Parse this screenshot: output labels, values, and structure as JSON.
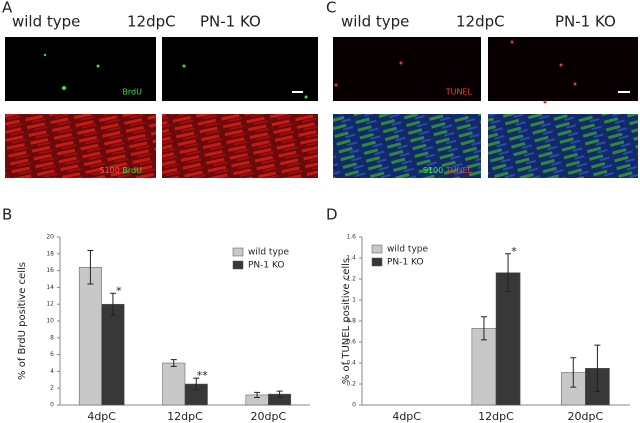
{
  "panels": {
    "a": "A",
    "b": "B",
    "c": "C",
    "d": "D"
  },
  "headers": {
    "left": {
      "wt": "wild type",
      "time": "12dpC",
      "ko": "PN-1 KO"
    },
    "right": {
      "wt": "wild type",
      "time": "12dpC",
      "ko": "PN-1 KO"
    }
  },
  "images": {
    "brdu": "BrdU",
    "s100_brdu": [
      "S100",
      "BrdU"
    ],
    "tunel": "TUNEL",
    "s100_tunel": [
      "S100",
      "TUNEL"
    ]
  },
  "chart_data": [
    {
      "type": "bar",
      "y_label": "% of BrdU positive cells",
      "categories": [
        "4dpC",
        "12dpC",
        "20dpC"
      ],
      "series": [
        {
          "name": "wild type",
          "color": "#c8c8c8",
          "values": [
            16.4,
            5.0,
            1.2
          ],
          "errors": [
            2.0,
            0.4,
            0.3
          ]
        },
        {
          "name": "PN-1 KO",
          "color": "#383838",
          "values": [
            12.0,
            2.5,
            1.3
          ],
          "errors": [
            1.3,
            0.7,
            0.35
          ]
        }
      ],
      "annotations": [
        "*",
        "**"
      ],
      "ylim": [
        0,
        20
      ],
      "yticks": [
        0,
        2,
        4,
        6,
        8,
        10,
        12,
        14,
        16,
        18,
        20
      ]
    },
    {
      "type": "bar",
      "y_label": "% of TUNEL positive cells",
      "categories": [
        "4dpC",
        "12dpC",
        "20dpC"
      ],
      "series": [
        {
          "name": "wild type",
          "color": "#c8c8c8",
          "values": [
            null,
            0.73,
            0.31
          ],
          "errors": [
            null,
            0.11,
            0.14
          ]
        },
        {
          "name": "PN-1 KO",
          "color": "#383838",
          "values": [
            null,
            1.26,
            0.35
          ],
          "errors": [
            null,
            0.18,
            0.22
          ]
        }
      ],
      "annotations": [
        "*"
      ],
      "ylim": [
        0,
        1.6
      ],
      "yticks": [
        0,
        0.2,
        0.4,
        0.6,
        0.8,
        1,
        1.2,
        1.4,
        1.6
      ]
    }
  ]
}
